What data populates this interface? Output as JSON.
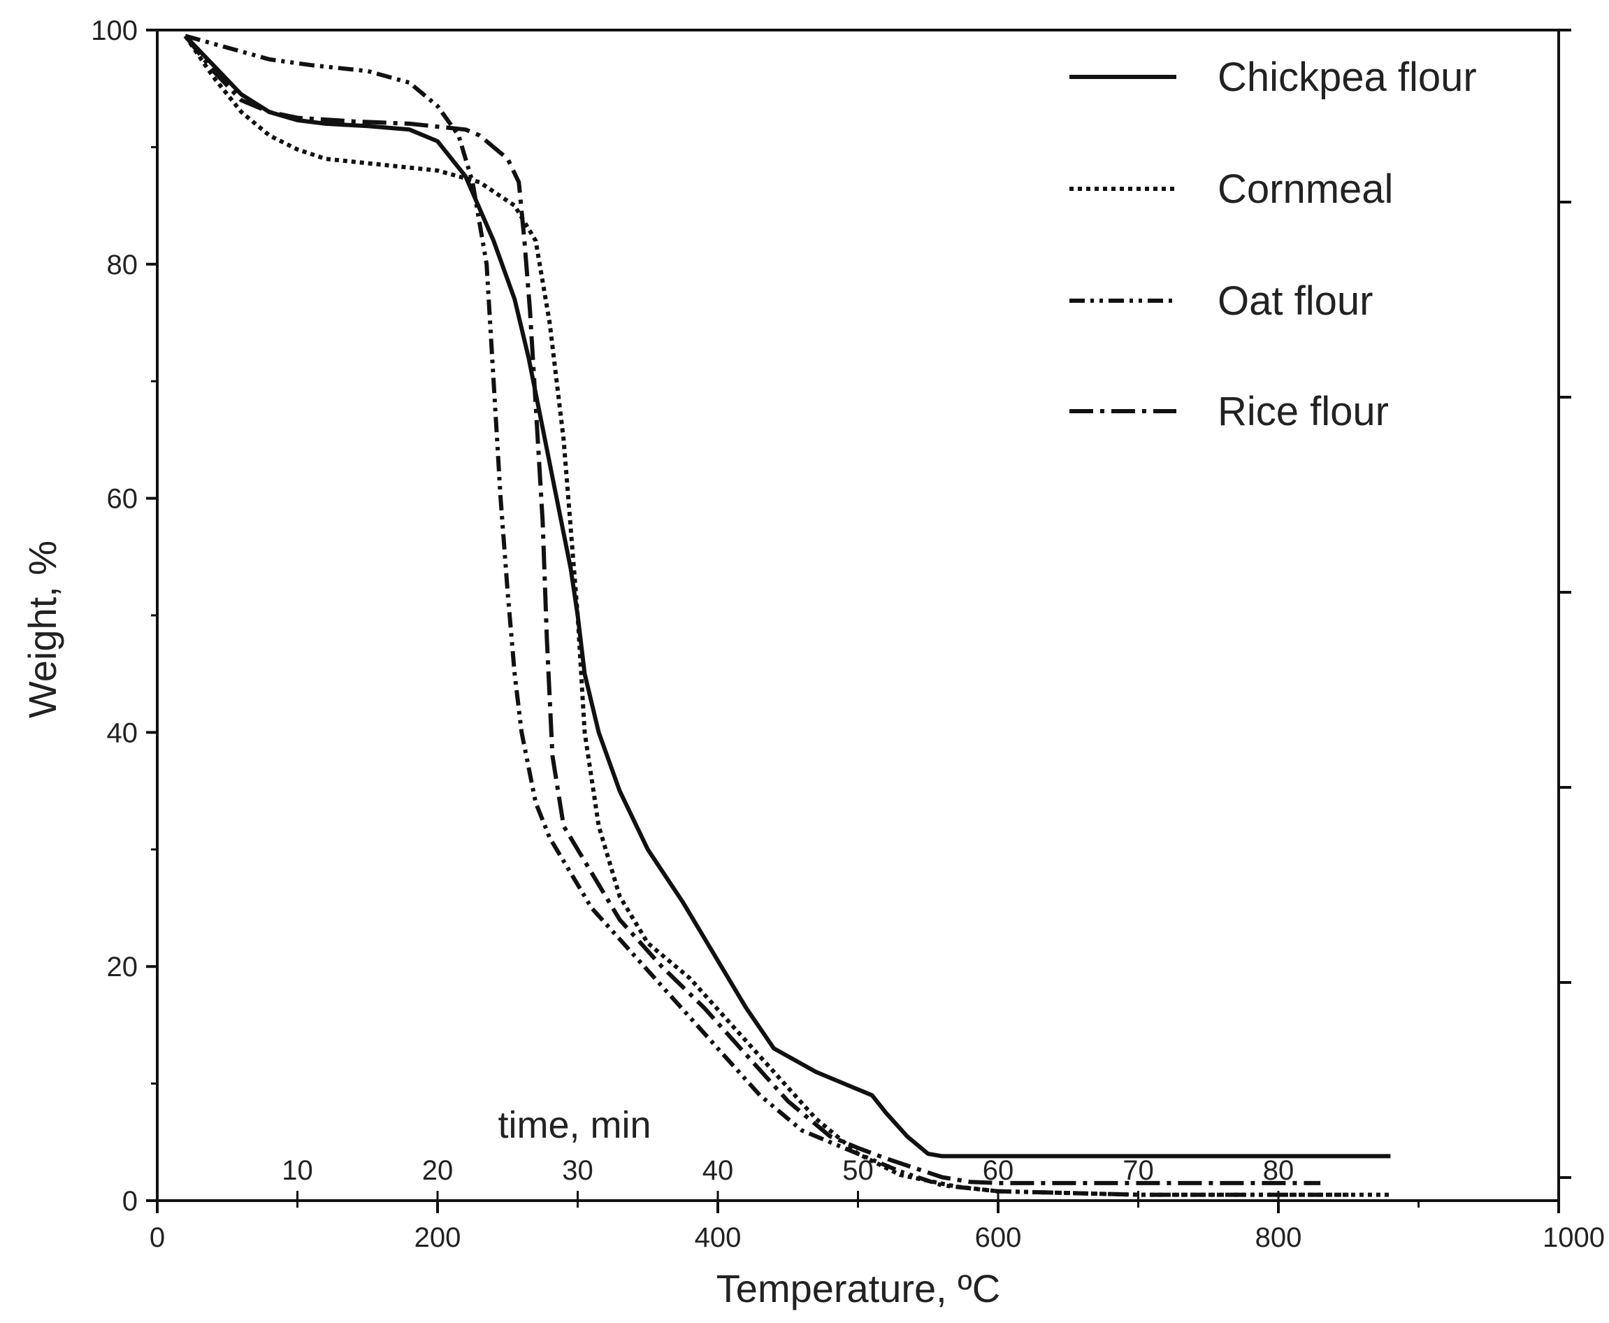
{
  "chart_data": {
    "type": "line",
    "title": "",
    "xlabel": "Temperature, ºC",
    "ylabel": "Weight, %",
    "xlim": [
      0,
      1000
    ],
    "ylim": [
      0,
      100
    ],
    "x_ticks": [
      0,
      200,
      400,
      600,
      800,
      1000
    ],
    "x_tick_labels": [
      "0",
      "200",
      "400",
      "600",
      "800",
      "1000"
    ],
    "y_ticks": [
      0,
      20,
      40,
      60,
      80,
      100
    ],
    "y_tick_labels": [
      "0",
      "20",
      "40",
      "60",
      "80",
      "100"
    ],
    "secondary_axis": {
      "title": "time, min",
      "ticks": [
        10,
        20,
        30,
        40,
        50,
        60,
        70,
        80
      ],
      "tick_labels": [
        "10",
        "20",
        "30",
        "40",
        "50",
        "60",
        "70",
        "80"
      ],
      "tick_temperatures": [
        100,
        200,
        300,
        400,
        500,
        600,
        700,
        800
      ]
    },
    "legend_position": "top-right",
    "series": [
      {
        "name": "Chickpea flour",
        "dash": "solid",
        "x": [
          20,
          40,
          60,
          80,
          100,
          120,
          150,
          180,
          200,
          220,
          240,
          255,
          265,
          275,
          285,
          295,
          300,
          305,
          315,
          330,
          350,
          375,
          400,
          420,
          440,
          455,
          470,
          490,
          510,
          520,
          535,
          550,
          560,
          600,
          700,
          800,
          880
        ],
        "y": [
          99.5,
          97,
          94.5,
          93,
          92.3,
          92,
          91.8,
          91.5,
          90.5,
          87.5,
          82,
          77,
          72,
          66,
          60,
          54,
          50,
          45,
          40,
          35,
          30,
          25.5,
          20.5,
          16.5,
          13,
          12,
          11,
          10,
          9,
          7.5,
          5.5,
          4,
          3.8,
          3.8,
          3.8,
          3.8,
          3.8
        ]
      },
      {
        "name": "Cornmeal",
        "dash": "dotted",
        "x": [
          20,
          40,
          60,
          80,
          100,
          120,
          160,
          200,
          230,
          255,
          270,
          280,
          290,
          300,
          305,
          315,
          330,
          350,
          380,
          410,
          440,
          470,
          500,
          530,
          570,
          600,
          700,
          800,
          880
        ],
        "y": [
          99.5,
          96,
          93,
          91,
          89.8,
          89,
          88.5,
          88,
          87,
          85,
          82,
          75,
          65,
          50,
          40,
          32,
          26,
          22,
          19,
          15,
          11,
          7,
          4,
          2.2,
          1.2,
          0.8,
          0.5,
          0.5,
          0.5
        ]
      },
      {
        "name": "Oat flour",
        "dash": "dash-dot-dot",
        "x": [
          20,
          50,
          80,
          110,
          150,
          180,
          200,
          215,
          225,
          235,
          240,
          245,
          250,
          255,
          260,
          270,
          280,
          290,
          310,
          340,
          370,
          400,
          430,
          460,
          480,
          500,
          530,
          560,
          600,
          700,
          800,
          850
        ],
        "y": [
          99.5,
          98.5,
          97.5,
          97,
          96.5,
          95.5,
          93.5,
          91,
          87,
          80,
          70,
          60,
          52,
          45,
          40,
          34,
          31,
          29,
          25,
          21,
          17,
          13,
          9,
          6,
          5,
          4,
          2.5,
          1.3,
          0.8,
          0.5,
          0.5,
          0.5
        ]
      },
      {
        "name": "Rice flour",
        "dash": "dash-dot",
        "x": [
          20,
          40,
          60,
          80,
          100,
          140,
          180,
          220,
          230,
          240,
          250,
          258,
          262,
          266,
          270,
          275,
          278,
          282,
          290,
          310,
          330,
          360,
          390,
          420,
          450,
          480,
          500,
          520,
          540,
          560,
          580,
          600,
          700,
          800,
          830
        ],
        "y": [
          99.5,
          96.5,
          94,
          93,
          92.5,
          92.2,
          92,
          91.5,
          91,
          90,
          89,
          87,
          82,
          76,
          68,
          58,
          48,
          38,
          32,
          28,
          24,
          20,
          16.5,
          12.5,
          8.5,
          5.5,
          4.5,
          3.6,
          2.8,
          2,
          1.6,
          1.5,
          1.5,
          1.5,
          1.5
        ]
      }
    ]
  }
}
